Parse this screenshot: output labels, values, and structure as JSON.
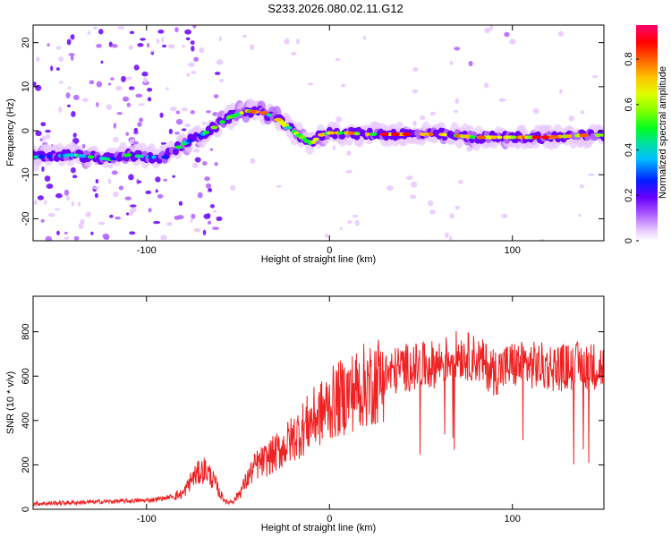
{
  "title": "S233.2026.080.02.11.G12",
  "chart_data": [
    {
      "type": "heatmap",
      "xlabel": "Height of straight line (km)",
      "ylabel": "Frequency (Hz)",
      "xlim": [
        -162,
        150
      ],
      "ylim": [
        -25,
        24
      ],
      "xticks": [
        -100,
        0,
        100
      ],
      "yticks": [
        -20,
        -10,
        0,
        10,
        20
      ],
      "colorbar": {
        "label": "Normalized spectral amplitude",
        "range": [
          0,
          0.95
        ],
        "ticks": [
          0,
          0.2,
          0.4,
          0.6,
          0.8
        ],
        "colors": [
          "#ffffff",
          "#e8c8ff",
          "#b060ff",
          "#6a00ff",
          "#0020ff",
          "#00c0ff",
          "#00e0a0",
          "#00ff20",
          "#80ff00",
          "#e0ff00",
          "#ffc000",
          "#ff6000",
          "#ff0000",
          "#ff0070"
        ]
      },
      "ridge": {
        "x": [
          -160,
          -140,
          -120,
          -110,
          -100,
          -90,
          -80,
          -70,
          -62,
          -55,
          -45,
          -35,
          -28,
          -22,
          -15,
          -10,
          -5,
          0,
          10,
          20,
          40,
          60,
          80,
          100,
          120,
          140,
          150
        ],
        "y": [
          -6,
          -5.5,
          -6.5,
          -5.5,
          -6,
          -6,
          -3,
          -1,
          1,
          3,
          4.5,
          4,
          2.5,
          0.5,
          -1.5,
          -3,
          -1,
          -0.5,
          -0.5,
          -0.8,
          -0.8,
          -0.8,
          -1.5,
          -1.5,
          -1.5,
          -1,
          -1
        ]
      }
    },
    {
      "type": "line",
      "xlabel": "Height of straight line (km)",
      "ylabel": "SNR (10 * v/v)",
      "xlim": [
        -162,
        150
      ],
      "ylim": [
        0,
        960
      ],
      "xticks": [
        -100,
        0,
        100
      ],
      "yticks": [
        0,
        200,
        400,
        600,
        800
      ],
      "color": "#ee2222",
      "series": [
        {
          "name": "SNR",
          "x": [
            -162,
            -140,
            -120,
            -100,
            -90,
            -80,
            -75,
            -72,
            -68,
            -65,
            -62,
            -60,
            -56,
            -52,
            -48,
            -44,
            -40,
            -35,
            -30,
            -25,
            -20,
            -15,
            -10,
            -5,
            0,
            10,
            20,
            30,
            40,
            50,
            60,
            70,
            80,
            90,
            100,
            110,
            120,
            130,
            140,
            150
          ],
          "y": [
            25,
            30,
            35,
            40,
            50,
            70,
            140,
            160,
            180,
            150,
            110,
            70,
            30,
            40,
            90,
            150,
            200,
            220,
            250,
            280,
            320,
            360,
            400,
            430,
            470,
            520,
            560,
            600,
            640,
            640,
            660,
            700,
            680,
            620,
            650,
            650,
            640,
            640,
            650,
            640
          ]
        }
      ]
    }
  ]
}
